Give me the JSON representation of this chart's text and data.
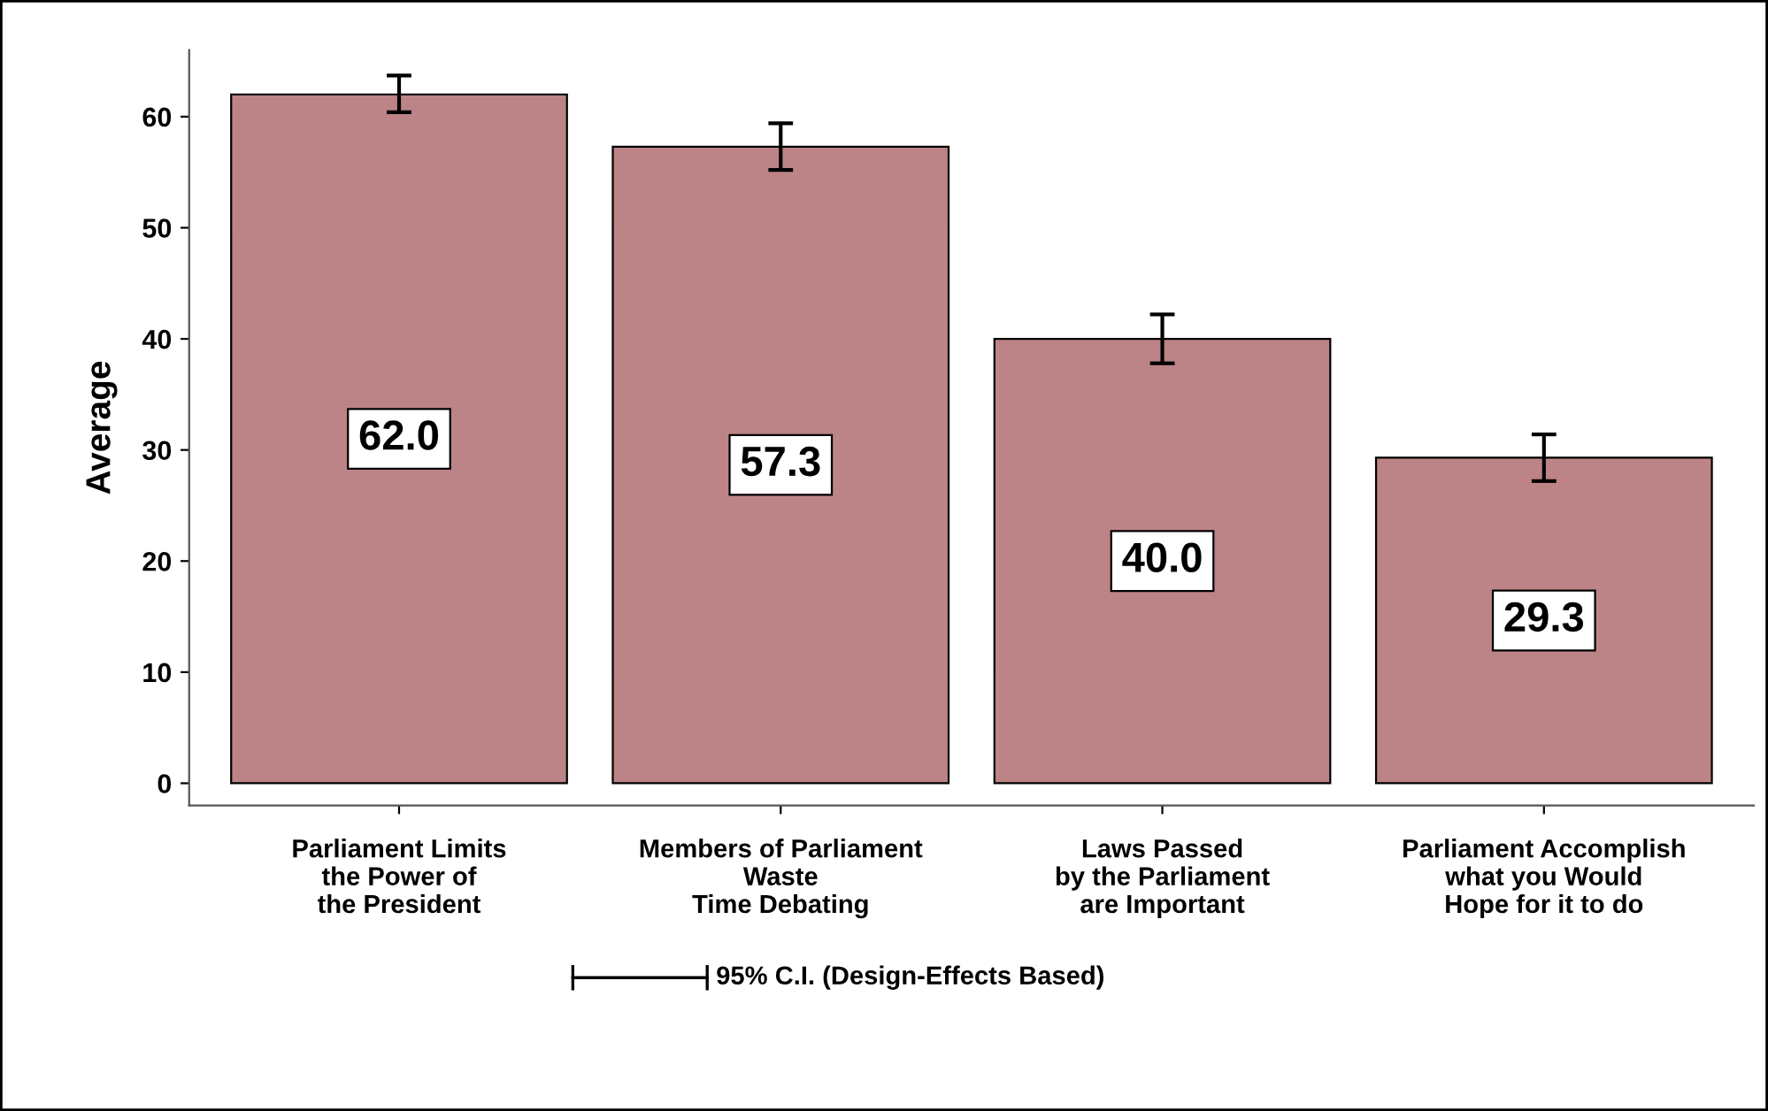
{
  "chart_data": {
    "type": "bar",
    "ylabel": "Average",
    "categories": [
      "Parliament Limits\nthe Power of\nthe President",
      "Members of Parliament\nWaste\nTime Debating",
      "Laws Passed\nby the Parliament\nare Important",
      "Parliament Accomplish\nwhat you Would\nHope for it to do"
    ],
    "values": [
      62.0,
      57.3,
      40.0,
      29.3
    ],
    "errors": [
      [
        60.4,
        63.7
      ],
      [
        55.2,
        59.4
      ],
      [
        37.8,
        42.2
      ],
      [
        27.2,
        31.4
      ]
    ],
    "color": "#bc8486",
    "value_labels": [
      "62.0",
      "57.3",
      "40.0",
      "29.3"
    ],
    "ylim": [
      -2,
      66
    ],
    "yticks": [
      0,
      10,
      20,
      30,
      40,
      50,
      60
    ],
    "grid": false,
    "annotations": [
      "95% C.I. (Design-Effects Based)"
    ]
  }
}
